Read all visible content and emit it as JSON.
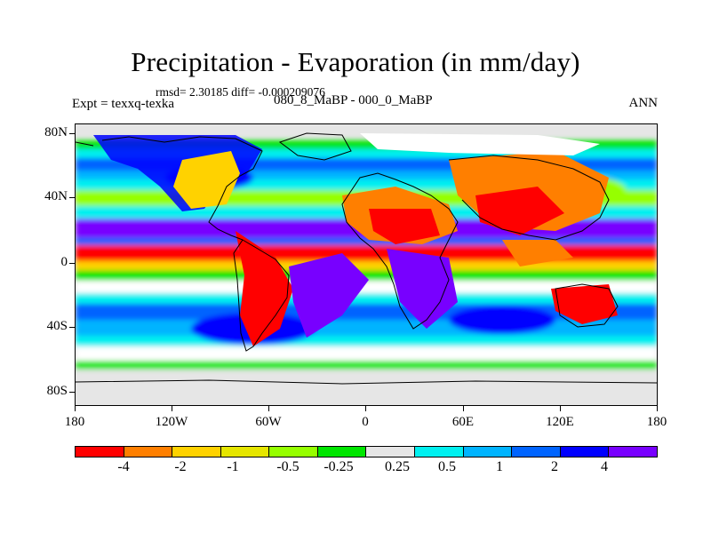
{
  "title": "Precipitation - Evaporation (in mm/day)",
  "stats": "rmsd= 2.30185 diff= -0.000209076",
  "experiment": "Expt = texxq-texka",
  "period": "080_8_MaBP - 000_0_MaBP",
  "season": "ANN",
  "map": {
    "y_ticks": [
      "80N",
      "40N",
      "0",
      "40S",
      "80S"
    ],
    "x_ticks": [
      "180",
      "120W",
      "60W",
      "0",
      "60E",
      "120E",
      "180"
    ],
    "colorbar": {
      "colors": [
        "#ff0000",
        "#ff7f00",
        "#ffd200",
        "#e6e600",
        "#96ff00",
        "#00e600",
        "#e6e6e6",
        "#00f0f0",
        "#00b4ff",
        "#0064ff",
        "#0000ff",
        "#7800ff"
      ],
      "labels": [
        "-4",
        "-2",
        "-1",
        "-0.5",
        "-0.25",
        "0.25",
        "0.5",
        "1",
        "2",
        "4"
      ]
    }
  }
}
